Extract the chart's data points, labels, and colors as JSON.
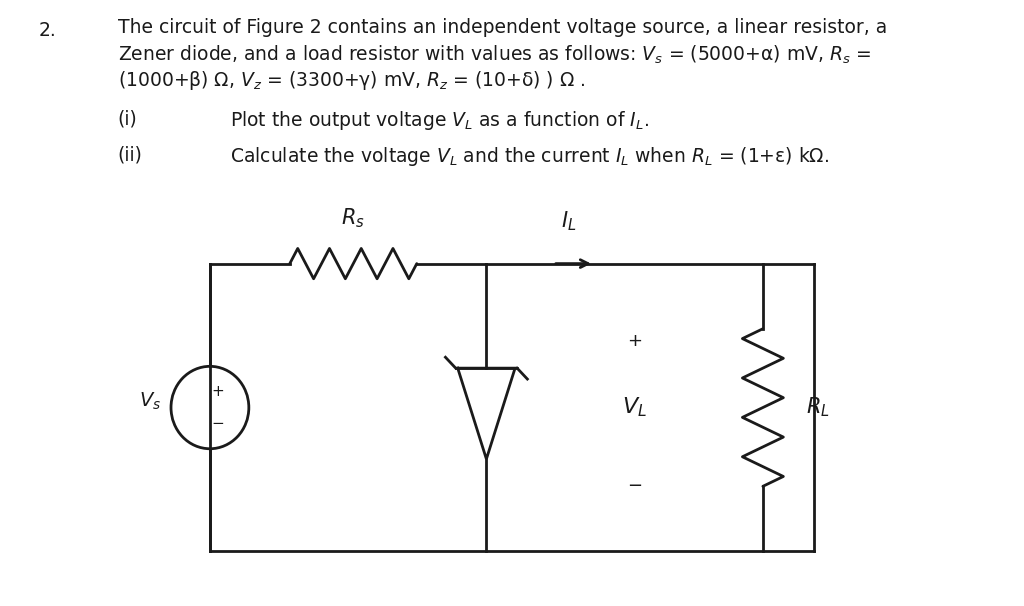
{
  "bg_color": "#ffffff",
  "text_color": "#1a1a1a",
  "line_color": "#1a1a1a",
  "fig_width": 10.24,
  "fig_height": 6.06,
  "problem_number": "2.",
  "text_line1": "The circuit of Figure 2 contains an independent voltage source, a linear resistor, a",
  "text_line2": "Zener diode, and a load resistor with values as follows: $V_s$ = (5000+α) mV, $R_s$ =",
  "text_line3": "(1000+β) Ω, $V_z$ = (3300+γ) mV, $R_z$ = (10+δ) ) Ω .",
  "part_i": "(i)",
  "part_i_text": "Plot the output voltage $V_L$ as a function of $I_L$.",
  "part_ii": "(ii)",
  "part_ii_text": "Calculate the voltage $V_L$ and the current $I_L$ when $R_L$ = (1+ε) kΩ.",
  "font_size_text": 13.5,
  "font_size_label": 14,
  "CL": 0.205,
  "CR": 0.795,
  "CT": 0.565,
  "CB": 0.09,
  "ZX": 0.475,
  "RLX": 0.745
}
